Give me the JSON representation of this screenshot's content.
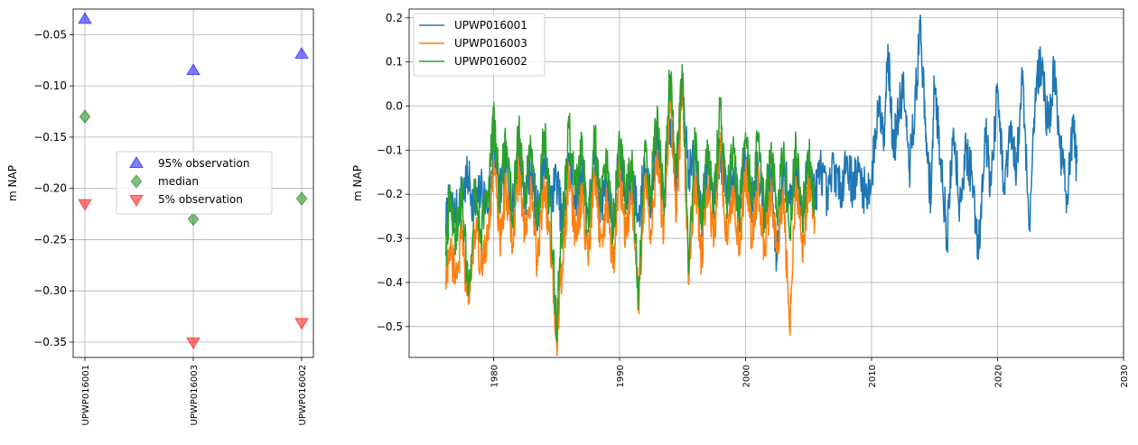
{
  "chart_data": [
    {
      "type": "scatter",
      "ylabel": "m NAP",
      "categories": [
        "UPWP016001",
        "UPWP016003",
        "UPWP016002"
      ],
      "ylim": [
        -0.365,
        -0.025
      ],
      "yticks": [
        -0.35,
        -0.3,
        -0.25,
        -0.2,
        -0.15,
        -0.1,
        -0.05
      ],
      "ytick_labels": [
        "−0.35",
        "−0.30",
        "−0.25",
        "−0.20",
        "−0.15",
        "−0.10",
        "−0.05"
      ],
      "grid": true,
      "legend_position": "center",
      "series": [
        {
          "name": "95% observation",
          "marker": "triangle-up",
          "color": "#0000ff",
          "values": [
            -0.035,
            -0.085,
            -0.069
          ]
        },
        {
          "name": "median",
          "marker": "diamond",
          "color": "#008000",
          "values": [
            -0.13,
            -0.23,
            -0.21
          ]
        },
        {
          "name": "5% observation",
          "marker": "triangle-down",
          "color": "#ff0000",
          "values": [
            -0.215,
            -0.35,
            -0.331
          ]
        }
      ]
    },
    {
      "type": "line",
      "ylabel": "m NAP",
      "xlim": [
        1973.3,
        2030
      ],
      "ylim": [
        -0.57,
        0.22
      ],
      "xticks": [
        1980,
        1990,
        2000,
        2010,
        2020,
        2030
      ],
      "xtick_labels": [
        "1980",
        "1990",
        "2000",
        "2010",
        "2020",
        "2030"
      ],
      "yticks": [
        -0.5,
        -0.4,
        -0.3,
        -0.2,
        -0.1,
        0.0,
        0.1,
        0.2
      ],
      "ytick_labels": [
        "−0.5",
        "−0.4",
        "−0.3",
        "−0.2",
        "−0.1",
        "0.0",
        "0.1",
        "0.2"
      ],
      "grid": true,
      "legend_position": "top-left",
      "series": [
        {
          "name": "UPWP016001",
          "color": "#1f77b4",
          "x": [
            1976.2,
            1976.5,
            1977,
            1977.5,
            1978,
            1978.5,
            1979,
            1979.6,
            1980,
            1980.5,
            1981,
            1981.5,
            1982,
            1982.5,
            1983,
            1983.5,
            1984,
            1984.5,
            1985,
            1985.5,
            1986,
            1986.5,
            1987,
            1987.5,
            1988,
            1988.5,
            1989,
            1989.5,
            1990,
            1990.5,
            1991,
            1991.5,
            1992,
            1992.5,
            1993,
            1993.5,
            1994,
            1994.5,
            1995,
            1995.5,
            1996,
            1996.5,
            1997,
            1997.5,
            1998,
            1998.5,
            1999,
            1999.5,
            2000,
            2000.5,
            2001,
            2001.5,
            2002,
            2002.5,
            2003,
            2003.5,
            2004,
            2004.5,
            2005,
            2005.5,
            2006,
            2006.5,
            2007,
            2007.5,
            2008,
            2008.5,
            2009,
            2009.5,
            2010,
            2010.5,
            2011,
            2011.3,
            2011.7,
            2012,
            2012.5,
            2013,
            2013.5,
            2013.9,
            2014.3,
            2014.7,
            2015,
            2015.5,
            2016,
            2016.5,
            2017,
            2017.5,
            2018,
            2018.5,
            2019,
            2019.5,
            2020,
            2020.5,
            2021,
            2021.5,
            2022,
            2022.5,
            2023,
            2023.5,
            2024,
            2024.5,
            2025,
            2025.5,
            2026,
            2026.3
          ],
          "y": [
            -0.27,
            -0.22,
            -0.25,
            -0.2,
            -0.16,
            -0.24,
            -0.19,
            -0.23,
            -0.09,
            -0.2,
            -0.13,
            -0.24,
            -0.11,
            -0.2,
            -0.15,
            -0.25,
            -0.12,
            -0.22,
            -0.16,
            -0.28,
            -0.12,
            -0.21,
            -0.14,
            -0.25,
            -0.13,
            -0.22,
            -0.17,
            -0.27,
            -0.12,
            -0.22,
            -0.15,
            -0.26,
            -0.13,
            -0.21,
            -0.08,
            -0.23,
            -0.03,
            -0.18,
            0.07,
            -0.15,
            -0.12,
            -0.25,
            -0.13,
            -0.22,
            -0.1,
            -0.21,
            -0.14,
            -0.24,
            -0.11,
            -0.22,
            -0.13,
            -0.24,
            -0.15,
            -0.35,
            -0.14,
            -0.22,
            -0.13,
            -0.26,
            -0.12,
            -0.2,
            -0.14,
            -0.22,
            -0.13,
            -0.2,
            -0.12,
            -0.18,
            -0.15,
            -0.2,
            -0.17,
            0.0,
            -0.05,
            0.14,
            -0.1,
            -0.05,
            0.05,
            -0.15,
            0.02,
            0.19,
            -0.08,
            -0.2,
            0.05,
            -0.12,
            -0.3,
            -0.05,
            -0.22,
            -0.1,
            -0.17,
            -0.33,
            -0.05,
            -0.18,
            0.04,
            -0.2,
            -0.06,
            -0.15,
            0.08,
            -0.28,
            0.04,
            0.1,
            -0.05,
            0.08,
            -0.1,
            -0.2,
            -0.06,
            -0.13
          ],
          "noise": 0.055
        },
        {
          "name": "UPWP016003",
          "color": "#ff7f0e",
          "x": [
            1976.2,
            1976.5,
            1977,
            1977.5,
            1978,
            1978.5,
            1979,
            1979.6,
            1980,
            1980.5,
            1981,
            1981.5,
            1982,
            1982.5,
            1983,
            1983.5,
            1984,
            1984.5,
            1985,
            1985.5,
            1986,
            1986.5,
            1987,
            1987.5,
            1988,
            1988.5,
            1989,
            1989.5,
            1990,
            1990.5,
            1991,
            1991.5,
            1992,
            1992.5,
            1993,
            1993.5,
            1994,
            1994.5,
            1995,
            1995.5,
            1996,
            1996.5,
            1997,
            1997.5,
            1998,
            1998.5,
            1999,
            1999.5,
            2000,
            2000.5,
            2001,
            2001.5,
            2002,
            2002.5,
            2003,
            2003.5,
            2004,
            2004.5,
            2005,
            2005.5
          ],
          "y": [
            -0.4,
            -0.32,
            -0.38,
            -0.3,
            -0.45,
            -0.28,
            -0.35,
            -0.3,
            -0.12,
            -0.3,
            -0.18,
            -0.33,
            -0.14,
            -0.3,
            -0.2,
            -0.36,
            -0.16,
            -0.32,
            -0.53,
            -0.35,
            -0.15,
            -0.3,
            -0.2,
            -0.35,
            -0.16,
            -0.3,
            -0.22,
            -0.36,
            -0.15,
            -0.3,
            -0.2,
            -0.45,
            -0.18,
            -0.28,
            -0.1,
            -0.3,
            0.03,
            -0.25,
            0.06,
            -0.4,
            -0.16,
            -0.35,
            -0.18,
            -0.3,
            -0.09,
            -0.3,
            -0.2,
            -0.32,
            -0.14,
            -0.3,
            -0.17,
            -0.32,
            -0.2,
            -0.33,
            -0.18,
            -0.51,
            -0.16,
            -0.34,
            -0.17,
            -0.25
          ],
          "noise": 0.05
        },
        {
          "name": "UPWP016002",
          "color": "#2ca02c",
          "x": [
            1976.2,
            1976.5,
            1977,
            1977.5,
            1978,
            1978.5,
            1979,
            1979.6,
            1980,
            1980.5,
            1981,
            1981.5,
            1982,
            1982.5,
            1983,
            1983.5,
            1984,
            1984.5,
            1985,
            1985.5,
            1986,
            1986.5,
            1987,
            1987.5,
            1988,
            1988.5,
            1989,
            1989.5,
            1990,
            1990.5,
            1991,
            1991.5,
            1992,
            1992.5,
            1993,
            1993.5,
            1994,
            1994.5,
            1995,
            1995.5,
            1996,
            1996.5,
            1997,
            1997.5,
            1998,
            1998.5,
            1999,
            1999.5,
            2000,
            2000.5,
            2001,
            2001.5,
            2002,
            2002.5,
            2003,
            2003.5,
            2004,
            2004.5,
            2005,
            2005.5
          ],
          "y": [
            -0.33,
            -0.22,
            -0.3,
            -0.2,
            -0.43,
            -0.18,
            -0.28,
            -0.2,
            -0.03,
            -0.2,
            -0.08,
            -0.25,
            -0.05,
            -0.2,
            -0.1,
            -0.28,
            -0.06,
            -0.22,
            -0.5,
            -0.25,
            -0.05,
            -0.2,
            -0.1,
            -0.28,
            -0.06,
            -0.22,
            -0.12,
            -0.3,
            -0.07,
            -0.22,
            -0.1,
            -0.44,
            -0.08,
            -0.2,
            0.0,
            -0.22,
            0.07,
            -0.15,
            0.07,
            -0.38,
            -0.08,
            -0.28,
            -0.1,
            -0.22,
            0.0,
            -0.22,
            -0.1,
            -0.25,
            -0.06,
            -0.22,
            -0.08,
            -0.25,
            -0.1,
            -0.25,
            -0.1,
            -0.3,
            -0.08,
            -0.26,
            -0.1,
            -0.22
          ],
          "noise": 0.055
        }
      ]
    }
  ]
}
